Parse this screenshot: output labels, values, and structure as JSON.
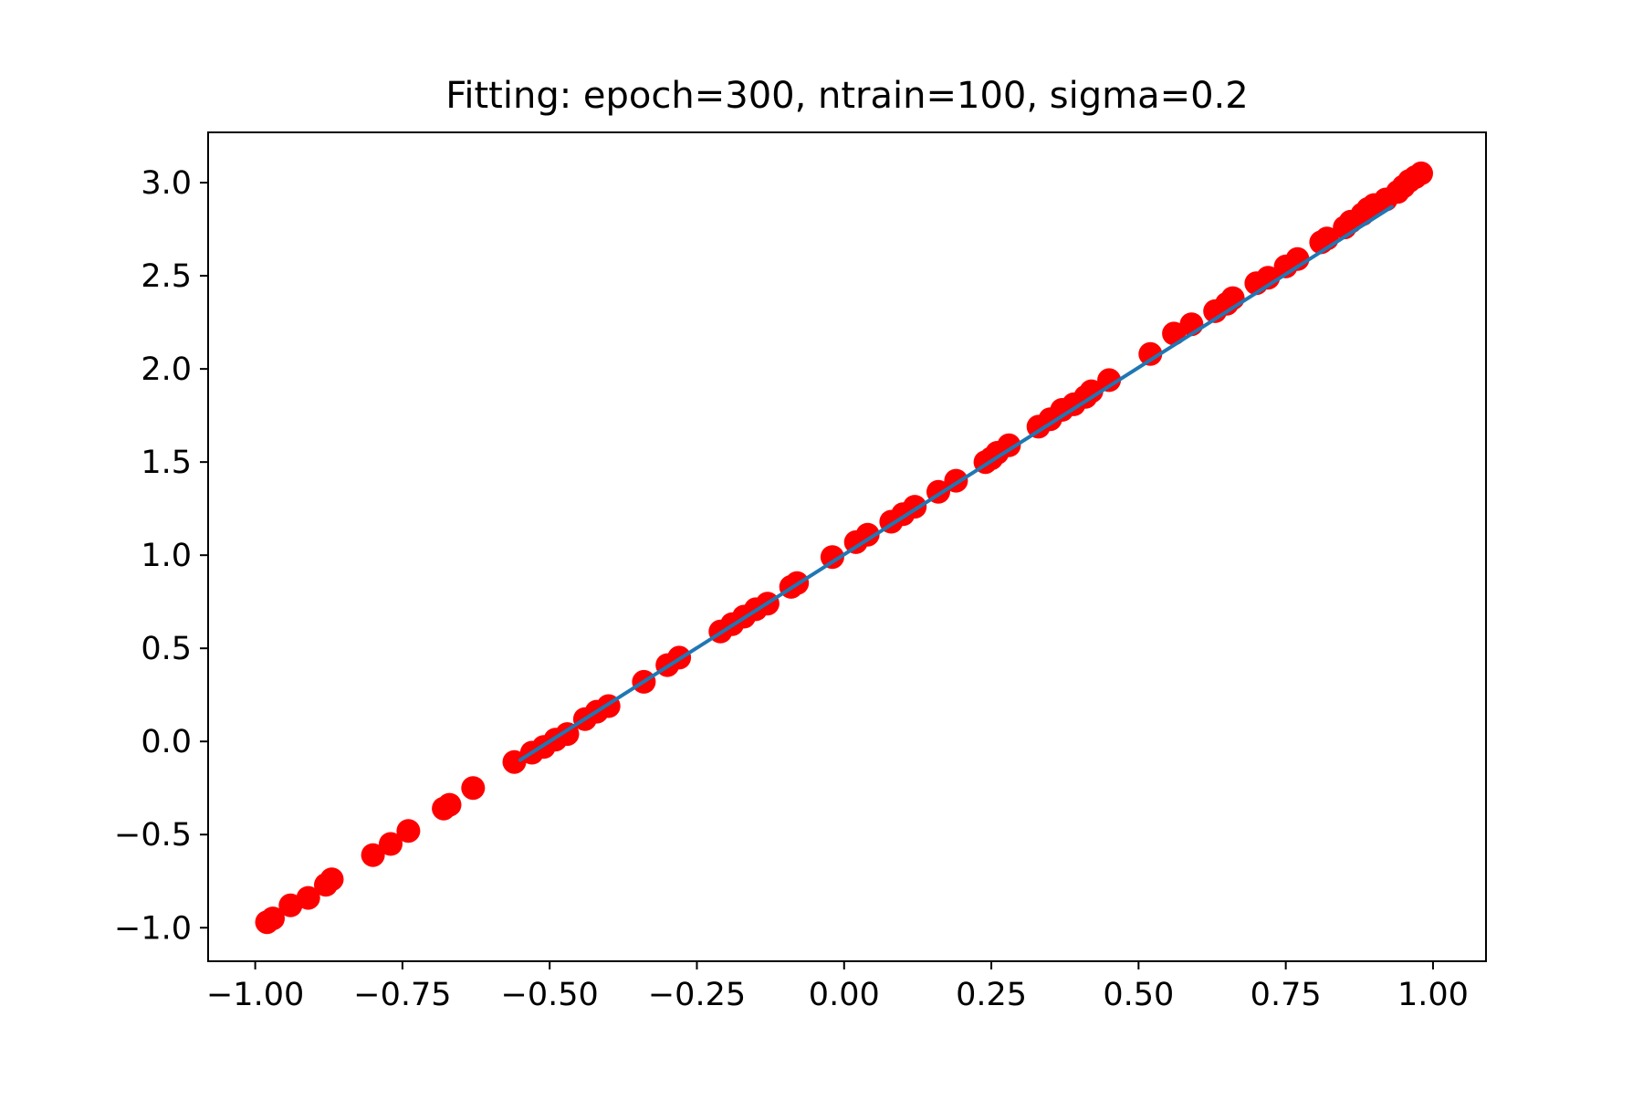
{
  "chart_data": {
    "type": "scatter",
    "title": "Fitting: epoch=300, ntrain=100, sigma=0.2",
    "xlabel": "",
    "ylabel": "",
    "xlim": [
      -1.08,
      1.09
    ],
    "ylim": [
      -1.18,
      3.27
    ],
    "xticks": [
      -1.0,
      -0.75,
      -0.5,
      -0.25,
      0.0,
      0.25,
      0.5,
      0.75,
      1.0
    ],
    "xtick_labels": [
      "−1.00",
      "−0.75",
      "−0.50",
      "−0.25",
      "0.00",
      "0.25",
      "0.50",
      "0.75",
      "1.00"
    ],
    "yticks": [
      -1.0,
      -0.5,
      0.0,
      0.5,
      1.0,
      1.5,
      2.0,
      2.5,
      3.0
    ],
    "ytick_labels": [
      "−1.0",
      "−0.5",
      "0.0",
      "0.5",
      "1.0",
      "1.5",
      "2.0",
      "2.5",
      "3.0"
    ],
    "grid": false,
    "colors": {
      "points": "#ff0000",
      "line": "#1f77b4",
      "axes": "#000000"
    },
    "series": [
      {
        "kind": "scatter",
        "color": "#ff0000",
        "points": [
          [
            -0.98,
            -0.97
          ],
          [
            -0.97,
            -0.95
          ],
          [
            -0.94,
            -0.88
          ],
          [
            -0.91,
            -0.84
          ],
          [
            -0.88,
            -0.77
          ],
          [
            -0.87,
            -0.74
          ],
          [
            -0.8,
            -0.61
          ],
          [
            -0.77,
            -0.55
          ],
          [
            -0.74,
            -0.48
          ],
          [
            -0.68,
            -0.36
          ],
          [
            -0.67,
            -0.34
          ],
          [
            -0.63,
            -0.25
          ],
          [
            -0.56,
            -0.11
          ],
          [
            -0.53,
            -0.06
          ],
          [
            -0.51,
            -0.03
          ],
          [
            -0.49,
            0.01
          ],
          [
            -0.47,
            0.04
          ],
          [
            -0.44,
            0.12
          ],
          [
            -0.42,
            0.16
          ],
          [
            -0.4,
            0.19
          ],
          [
            -0.34,
            0.32
          ],
          [
            -0.3,
            0.41
          ],
          [
            -0.28,
            0.45
          ],
          [
            -0.21,
            0.59
          ],
          [
            -0.19,
            0.63
          ],
          [
            -0.17,
            0.67
          ],
          [
            -0.15,
            0.71
          ],
          [
            -0.13,
            0.74
          ],
          [
            -0.09,
            0.83
          ],
          [
            -0.08,
            0.85
          ],
          [
            -0.02,
            0.99
          ],
          [
            0.02,
            1.07
          ],
          [
            0.04,
            1.11
          ],
          [
            0.08,
            1.18
          ],
          [
            0.1,
            1.22
          ],
          [
            0.12,
            1.26
          ],
          [
            0.16,
            1.34
          ],
          [
            0.19,
            1.4
          ],
          [
            0.24,
            1.5
          ],
          [
            0.25,
            1.52
          ],
          [
            0.26,
            1.55
          ],
          [
            0.28,
            1.59
          ],
          [
            0.33,
            1.69
          ],
          [
            0.35,
            1.73
          ],
          [
            0.37,
            1.78
          ],
          [
            0.39,
            1.81
          ],
          [
            0.41,
            1.85
          ],
          [
            0.42,
            1.88
          ],
          [
            0.45,
            1.94
          ],
          [
            0.52,
            2.08
          ],
          [
            0.56,
            2.19
          ],
          [
            0.59,
            2.24
          ],
          [
            0.63,
            2.31
          ],
          [
            0.65,
            2.35
          ],
          [
            0.66,
            2.38
          ],
          [
            0.7,
            2.46
          ],
          [
            0.72,
            2.49
          ],
          [
            0.75,
            2.55
          ],
          [
            0.77,
            2.59
          ],
          [
            0.81,
            2.68
          ],
          [
            0.82,
            2.7
          ],
          [
            0.85,
            2.76
          ],
          [
            0.86,
            2.79
          ],
          [
            0.88,
            2.83
          ],
          [
            0.89,
            2.86
          ],
          [
            0.9,
            2.88
          ],
          [
            0.92,
            2.91
          ],
          [
            0.94,
            2.95
          ],
          [
            0.95,
            2.98
          ],
          [
            0.96,
            3.01
          ],
          [
            0.97,
            3.03
          ],
          [
            0.98,
            3.05
          ]
        ]
      },
      {
        "kind": "line",
        "color": "#1f77b4",
        "x": [
          -0.55,
          0.93
        ],
        "y": [
          -0.1,
          2.87
        ]
      }
    ]
  }
}
